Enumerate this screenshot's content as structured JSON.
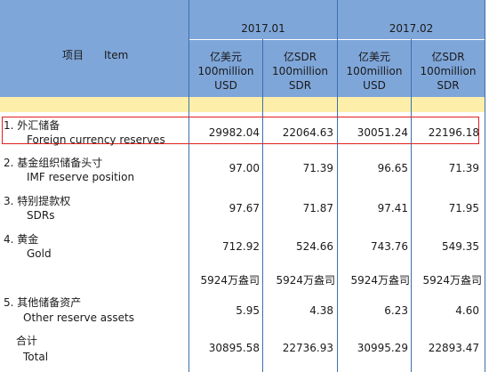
{
  "header": {
    "item_cn": "项目",
    "item_en": "Item",
    "periods": [
      {
        "label": "2017.01"
      },
      {
        "label": "2017.02"
      }
    ],
    "units": [
      {
        "line1": "亿美元",
        "line2": "100million",
        "line3": "USD"
      },
      {
        "line1": "亿SDR",
        "line2": "100million",
        "line3": "SDR"
      },
      {
        "line1": "亿美元",
        "line2": "100million",
        "line3": "USD"
      },
      {
        "line1": "亿SDR",
        "line2": "100million",
        "line3": "SDR"
      }
    ]
  },
  "rows": [
    {
      "cn": "1. 外汇储备",
      "en": "Foreign currency reserves",
      "values": [
        "29982.04",
        "22064.63",
        "30051.24",
        "22196.18"
      ],
      "highlighted": true
    },
    {
      "cn": "2. 基金组织储备头寸",
      "en": "IMF reserve position",
      "values": [
        "97.00",
        "71.39",
        "96.65",
        "71.39"
      ]
    },
    {
      "cn": "3. 特别提款权",
      "en": "SDRs",
      "values": [
        "97.67",
        "71.87",
        "97.41",
        "71.95"
      ]
    },
    {
      "cn": "4. 黄金",
      "en": "Gold",
      "values": [
        "712.92",
        "524.66",
        "743.76",
        "549.35"
      ]
    },
    {
      "cn": "",
      "en": "",
      "values": [
        "5924万盎司",
        "5924万盎司",
        "5924万盎司",
        "5924万盎司"
      ]
    },
    {
      "cn": "5. 其他储备资产",
      "en": "Other reserve assets",
      "values": [
        "5.95",
        "4.38",
        "6.23",
        "4.60"
      ]
    },
    {
      "cn": "合计",
      "en": "Total",
      "values": [
        "30895.58",
        "22736.93",
        "30995.29",
        "22893.47"
      ]
    }
  ],
  "colors": {
    "header_bg": "#7fa6d9",
    "band": "#fdefaa",
    "grid": "#3c6fb0",
    "highlight_border": "#e02020"
  }
}
